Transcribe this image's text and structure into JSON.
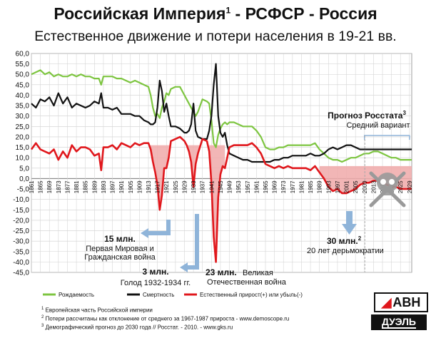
{
  "header": {
    "title_main": "Российская Империя",
    "title_sup": "1",
    "title_rest": " - РСФСР - Россия",
    "subtitle": "Естественное движение и потери населения в 19-21 вв."
  },
  "annotations": {
    "forecast_title": "Прогноз Росстата",
    "forecast_sup": "3",
    "forecast_sub": "Средний вариант",
    "ann15_title": "15 млн.",
    "ann15_l1": "Первая Мировая и",
    "ann15_l2": "Гражданская война",
    "ann3_title": "3 млн.",
    "ann3_l1": "Голод 1932-1934 гг.",
    "ann23_title": "23 млн.",
    "ann23_l1": "Великая",
    "ann23_l2": "Отечественная война",
    "ann30_title": "30 млн.",
    "ann30_sup": "2",
    "ann30_l1": "20 лет дерьмократии"
  },
  "legend": {
    "births": "Рождаемость",
    "deaths": "Смертность",
    "natural": "Естественный прирост(+) или убыль(-)"
  },
  "footnotes": {
    "n1_mark": "1",
    "n1": "Европейская часть Российской империи",
    "n2_mark": "2",
    "n2": "Потери рассчитаны как отклонение от среднего за 1967-1987 прироста - www.demoscope.ru",
    "n3_mark": "3",
    "n3": "Демографический прогноз до 2030 года // Росстат. - 2010. - www.gks.ru"
  },
  "logos": {
    "avn": "АВН",
    "duel": "ДУЭЛЬ"
  },
  "colors": {
    "births": "#7dc540",
    "deaths": "#111111",
    "natural": "#e0171c",
    "loss_fill": "#f0a9a9",
    "arrow": "#8fb4d9"
  },
  "chart_data": {
    "type": "line",
    "title": "Естественное движение и потери населения в 19-21 вв.",
    "xlim": [
      1861,
      2030
    ],
    "ylim": [
      -45,
      60
    ],
    "y_tick_step": 5,
    "x_ticks": [
      1861,
      1865,
      1869,
      1873,
      1877,
      1881,
      1885,
      1889,
      1893,
      1897,
      1901,
      1905,
      1909,
      1913,
      1917,
      1921,
      1925,
      1929,
      1933,
      1937,
      1941,
      1945,
      1949,
      1953,
      1957,
      1961,
      1965,
      1969,
      1973,
      1977,
      1981,
      1985,
      1989,
      1993,
      1997,
      2001,
      2005,
      2009,
      2013,
      2017,
      2021,
      2025,
      2029
    ],
    "grid": true,
    "legend_position": "bottom",
    "series": [
      {
        "name": "Рождаемость",
        "color": "#7dc540",
        "x": [
          1861,
          1863,
          1865,
          1867,
          1869,
          1871,
          1873,
          1875,
          1877,
          1879,
          1881,
          1883,
          1885,
          1887,
          1889,
          1891,
          1892,
          1893,
          1895,
          1897,
          1899,
          1901,
          1903,
          1905,
          1907,
          1909,
          1911,
          1913,
          1914,
          1915,
          1916,
          1917,
          1918,
          1919,
          1920,
          1921,
          1922,
          1923,
          1925,
          1927,
          1929,
          1930,
          1931,
          1932,
          1933,
          1934,
          1935,
          1937,
          1939,
          1940,
          1941,
          1942,
          1943,
          1944,
          1945,
          1946,
          1947,
          1948,
          1949,
          1951,
          1953,
          1955,
          1957,
          1959,
          1961,
          1963,
          1965,
          1967,
          1969,
          1971,
          1973,
          1975,
          1977,
          1979,
          1981,
          1983,
          1985,
          1987,
          1989,
          1991,
          1993,
          1995,
          1997,
          1999,
          2001,
          2003,
          2005,
          2007,
          2009,
          2011,
          2013,
          2015,
          2017,
          2019,
          2021,
          2023,
          2025,
          2027,
          2030
        ],
        "y": [
          50,
          51,
          52,
          50,
          51,
          49,
          50,
          49,
          49,
          50,
          49,
          50,
          49,
          49,
          48,
          48,
          45,
          49,
          49,
          49,
          48,
          48,
          47,
          46,
          47,
          46,
          45,
          44,
          40,
          34,
          30,
          31,
          29,
          34,
          37,
          41,
          40,
          43,
          44,
          44,
          40,
          38,
          36,
          34,
          32,
          30,
          32,
          38,
          37,
          36,
          28,
          17,
          15,
          21,
          24,
          26,
          27,
          26,
          27,
          27,
          26,
          25,
          25,
          25,
          23,
          20,
          15,
          14,
          14,
          15,
          15,
          16,
          16,
          16,
          16,
          16,
          16,
          17,
          14,
          12,
          10,
          9,
          9,
          8,
          9,
          10,
          10,
          11,
          12,
          12,
          13,
          13,
          12,
          11,
          10,
          10,
          9,
          9,
          9
        ]
      },
      {
        "name": "Смертность",
        "color": "#111111",
        "x": [
          1861,
          1863,
          1865,
          1867,
          1869,
          1871,
          1873,
          1875,
          1877,
          1879,
          1881,
          1883,
          1885,
          1887,
          1889,
          1891,
          1892,
          1893,
          1895,
          1897,
          1899,
          1901,
          1903,
          1905,
          1907,
          1909,
          1911,
          1913,
          1914,
          1915,
          1916,
          1917,
          1918,
          1919,
          1920,
          1921,
          1922,
          1923,
          1925,
          1927,
          1929,
          1930,
          1931,
          1932,
          1933,
          1934,
          1935,
          1937,
          1939,
          1940,
          1941,
          1942,
          1943,
          1944,
          1945,
          1946,
          1947,
          1948,
          1949,
          1951,
          1953,
          1955,
          1957,
          1959,
          1961,
          1963,
          1965,
          1967,
          1969,
          1971,
          1973,
          1975,
          1977,
          1979,
          1981,
          1983,
          1985,
          1987,
          1989,
          1991,
          1993,
          1995,
          1997,
          1999,
          2001,
          2003,
          2005,
          2007,
          2009,
          2011,
          2013,
          2015,
          2017,
          2019,
          2021,
          2023,
          2025,
          2027,
          2030
        ],
        "y": [
          36,
          34,
          38,
          37,
          39,
          35,
          41,
          36,
          39,
          34,
          36,
          35,
          34,
          35,
          37,
          36,
          41,
          34,
          34,
          33,
          34,
          31,
          31,
          31,
          30,
          30,
          28,
          27,
          26,
          26,
          27,
          34,
          47,
          42,
          32,
          36,
          30,
          25,
          25,
          24,
          22,
          22,
          23,
          26,
          36,
          23,
          20,
          19,
          19,
          23,
          30,
          45,
          55,
          30,
          22,
          20,
          22,
          16,
          12,
          11,
          10,
          9,
          9,
          8,
          8,
          8,
          8,
          8,
          9,
          9,
          10,
          10,
          11,
          11,
          11,
          11,
          12,
          11,
          11,
          12,
          14,
          15,
          14,
          15,
          16,
          16,
          15,
          14,
          14,
          14,
          14,
          14,
          14,
          14,
          14,
          14,
          14,
          14,
          14
        ]
      },
      {
        "name": "Естественный прирост(+) или убыль(-)",
        "color": "#e0171c",
        "x": [
          1861,
          1863,
          1865,
          1867,
          1869,
          1871,
          1873,
          1875,
          1877,
          1879,
          1881,
          1883,
          1885,
          1887,
          1889,
          1891,
          1892,
          1893,
          1895,
          1897,
          1899,
          1901,
          1903,
          1905,
          1907,
          1909,
          1911,
          1913,
          1914,
          1915,
          1916,
          1917,
          1918,
          1919,
          1920,
          1921,
          1922,
          1923,
          1925,
          1927,
          1929,
          1930,
          1931,
          1932,
          1933,
          1934,
          1935,
          1937,
          1939,
          1940,
          1941,
          1942,
          1943,
          1944,
          1945,
          1946,
          1947,
          1948,
          1949,
          1951,
          1953,
          1955,
          1957,
          1959,
          1961,
          1963,
          1965,
          1967,
          1969,
          1971,
          1973,
          1975,
          1977,
          1979,
          1981,
          1983,
          1985,
          1987,
          1989,
          1991,
          1993,
          1995,
          1997,
          1999,
          2001,
          2003,
          2005,
          2007,
          2009,
          2011,
          2013,
          2015,
          2017,
          2019,
          2021,
          2023,
          2025,
          2027,
          2030
        ],
        "y": [
          14,
          17,
          14,
          13,
          12,
          14,
          9,
          13,
          10,
          16,
          13,
          15,
          15,
          14,
          11,
          12,
          4,
          15,
          15,
          16,
          14,
          17,
          16,
          15,
          17,
          16,
          17,
          17,
          14,
          8,
          3,
          -3,
          -15,
          -8,
          5,
          5,
          10,
          18,
          19,
          20,
          18,
          16,
          13,
          8,
          -4,
          7,
          12,
          19,
          18,
          13,
          -2,
          -28,
          -40,
          -9,
          2,
          6,
          5,
          10,
          15,
          16,
          16,
          16,
          16,
          17,
          15,
          12,
          7,
          6,
          5,
          6,
          5,
          6,
          5,
          5,
          5,
          5,
          4,
          6,
          3,
          0,
          -4,
          -6,
          -5,
          -7,
          -7,
          -6,
          -5,
          -3,
          -2,
          -2,
          -1,
          -1,
          -2,
          -3,
          -4,
          -4,
          -5,
          -5,
          -5
        ]
      }
    ],
    "loss_band_level": 16
  }
}
